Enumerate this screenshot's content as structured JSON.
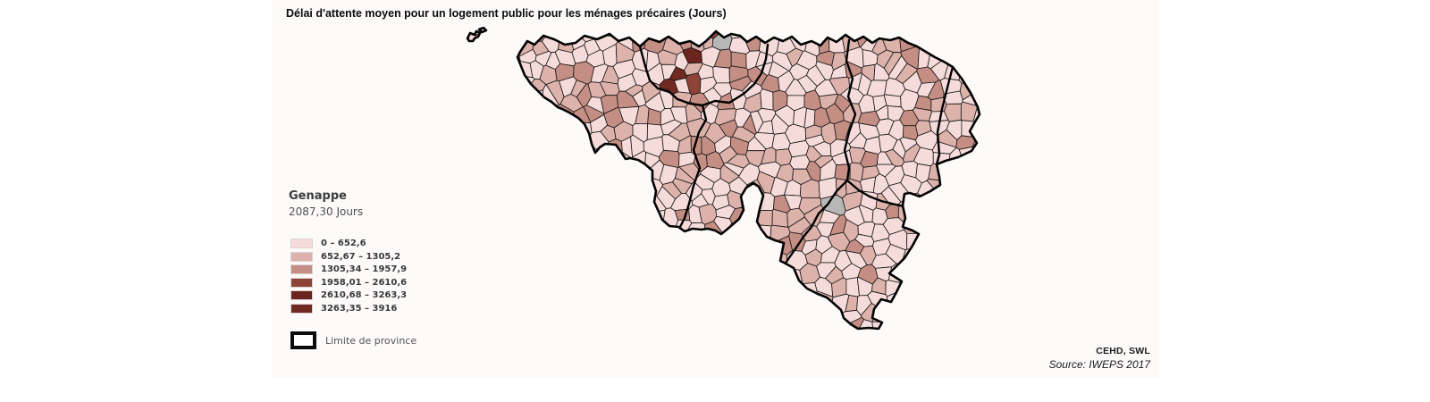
{
  "title": "Délai d'attente moyen pour un logement public pour les ménages précaires (Jours)",
  "tooltip": {
    "name": "Genappe",
    "value": "2087,30 Jours"
  },
  "legend": {
    "classes": [
      {
        "label": "0 – 652,6",
        "color": "#f5dcdb"
      },
      {
        "label": "652,67 – 1305,2",
        "color": "#dcb2ab"
      },
      {
        "label": "1305,34 – 1957,9",
        "color": "#c48e84"
      },
      {
        "label": "1958,01 – 2610,6",
        "color": "#8e4337"
      },
      {
        "label": "2610,68 – 3263,3",
        "color": "#6b241e"
      },
      {
        "label": "3263,35 – 3916",
        "color": "#702a21"
      }
    ],
    "no_data_color": "#b8b7b7",
    "province_label": "Limite de province"
  },
  "source": {
    "line1": "CEHD, SWL",
    "line2": "Source: IWEPS 2017"
  },
  "map": {
    "region": "Wallonie",
    "highlighted_commune": "Genappe",
    "commune_border_color": "#161616",
    "province_border_color": "#000000"
  },
  "chart_data": {
    "type": "choropleth",
    "title": "Délai d'attente moyen pour un logement public pour les ménages précaires (Jours)",
    "unit": "Jours",
    "value_min": 0,
    "value_max": 3916,
    "class_breaks": [
      "0 – 652,6",
      "652,67 – 1305,2",
      "1305,34 – 1957,9",
      "1958,01 – 2610,6",
      "2610,68 – 3263,3",
      "3263,35 – 3916"
    ],
    "highlighted": {
      "name": "Genappe",
      "value": 2087.3,
      "value_label": "2087,30 Jours"
    },
    "legend_position": "bottom-left",
    "source": "CEHD, SWL — Source: IWEPS 2017"
  }
}
